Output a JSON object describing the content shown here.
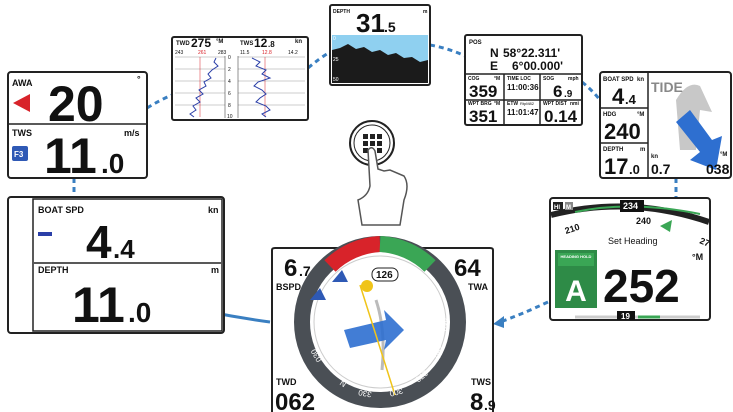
{
  "awa_panel": {
    "label": "AWA",
    "unit": "°",
    "value": "20",
    "tws_label": "TWS",
    "tws_unit": "m/s",
    "tws_value": "11",
    "tws_decimal": ".0",
    "button": "F3"
  },
  "graph_panel": {
    "twd": {
      "label": "TWD",
      "value": "275",
      "unit": "°M",
      "scale": [
        "243",
        "261",
        "283"
      ]
    },
    "tws": {
      "label": "TWS",
      "value": "12",
      "decimal": ".8",
      "unit": "kn",
      "scale": [
        "11.5",
        "12.8",
        "14.2"
      ]
    },
    "axis": [
      "0",
      "2",
      "4",
      "6",
      "8",
      "10"
    ]
  },
  "depth_panel": {
    "label": "DEPTH",
    "unit": "m",
    "value": "31",
    "decimal": ".5",
    "axis": [
      "0",
      "25",
      "50"
    ]
  },
  "pos_panel": {
    "label": "POS",
    "lat_hemi": "N",
    "lat": "58°22.311'",
    "lon_hemi": "E",
    "lon": "6°00.000'",
    "cells": [
      {
        "label": "COG",
        "unit": "°M",
        "value": "359"
      },
      {
        "label": "TIME LOC",
        "value": "11:00:36"
      },
      {
        "label": "SOG",
        "unit": "mph",
        "value": "6",
        "decimal": ".9"
      },
      {
        "label": "WPT BRG",
        "unit": "°M",
        "value": "351"
      },
      {
        "label": "ETW",
        "sub": "RtpM82",
        "value": "11:01:47"
      },
      {
        "label": "WPT DIST",
        "unit": "nmi",
        "value": "0.14"
      }
    ]
  },
  "tide_panel": {
    "boat_spd": {
      "label": "BOAT SPD",
      "unit": "kn",
      "value": "4",
      "decimal": ".4"
    },
    "hdg": {
      "label": "HDG",
      "unit": "°M",
      "value": "240"
    },
    "depth": {
      "label": "DEPTH",
      "unit": "m",
      "value": "17",
      "decimal": ".0"
    },
    "tide": {
      "label": "TIDE",
      "speed_unit": "kn",
      "speed": "0.7",
      "dir_unit": "°M",
      "dir": "038"
    }
  },
  "boat_panel": {
    "label": "BOAT SPD",
    "unit": "kn",
    "value": "4",
    "decimal": ".4",
    "depth_label": "DEPTH",
    "depth_unit": "m",
    "depth_value": "11",
    "depth_decimal": ".0"
  },
  "autopilot_panel": {
    "hi": "HI",
    "mode_letter": "M",
    "heading_box": "234",
    "scale": [
      "210",
      "240",
      "27"
    ],
    "mode_label": "HEADING HOLD",
    "mode": "A",
    "set_label": "Set Heading",
    "set_value": "252",
    "unit": "°M",
    "rudder": "19"
  },
  "wind_panel": {
    "bspd": "6",
    "bspd_decimal": ".7",
    "bspd_label": "BSPD",
    "twa": "64",
    "twa_label": "TWA",
    "heading": "126",
    "twd_label": "TWD",
    "twd": "062",
    "tws_label": "TWS",
    "tws": "8",
    "tws_decimal": ".9",
    "compass": [
      "150",
      "180",
      "210",
      "240",
      "270",
      "300",
      "330",
      "N",
      "030"
    ]
  }
}
